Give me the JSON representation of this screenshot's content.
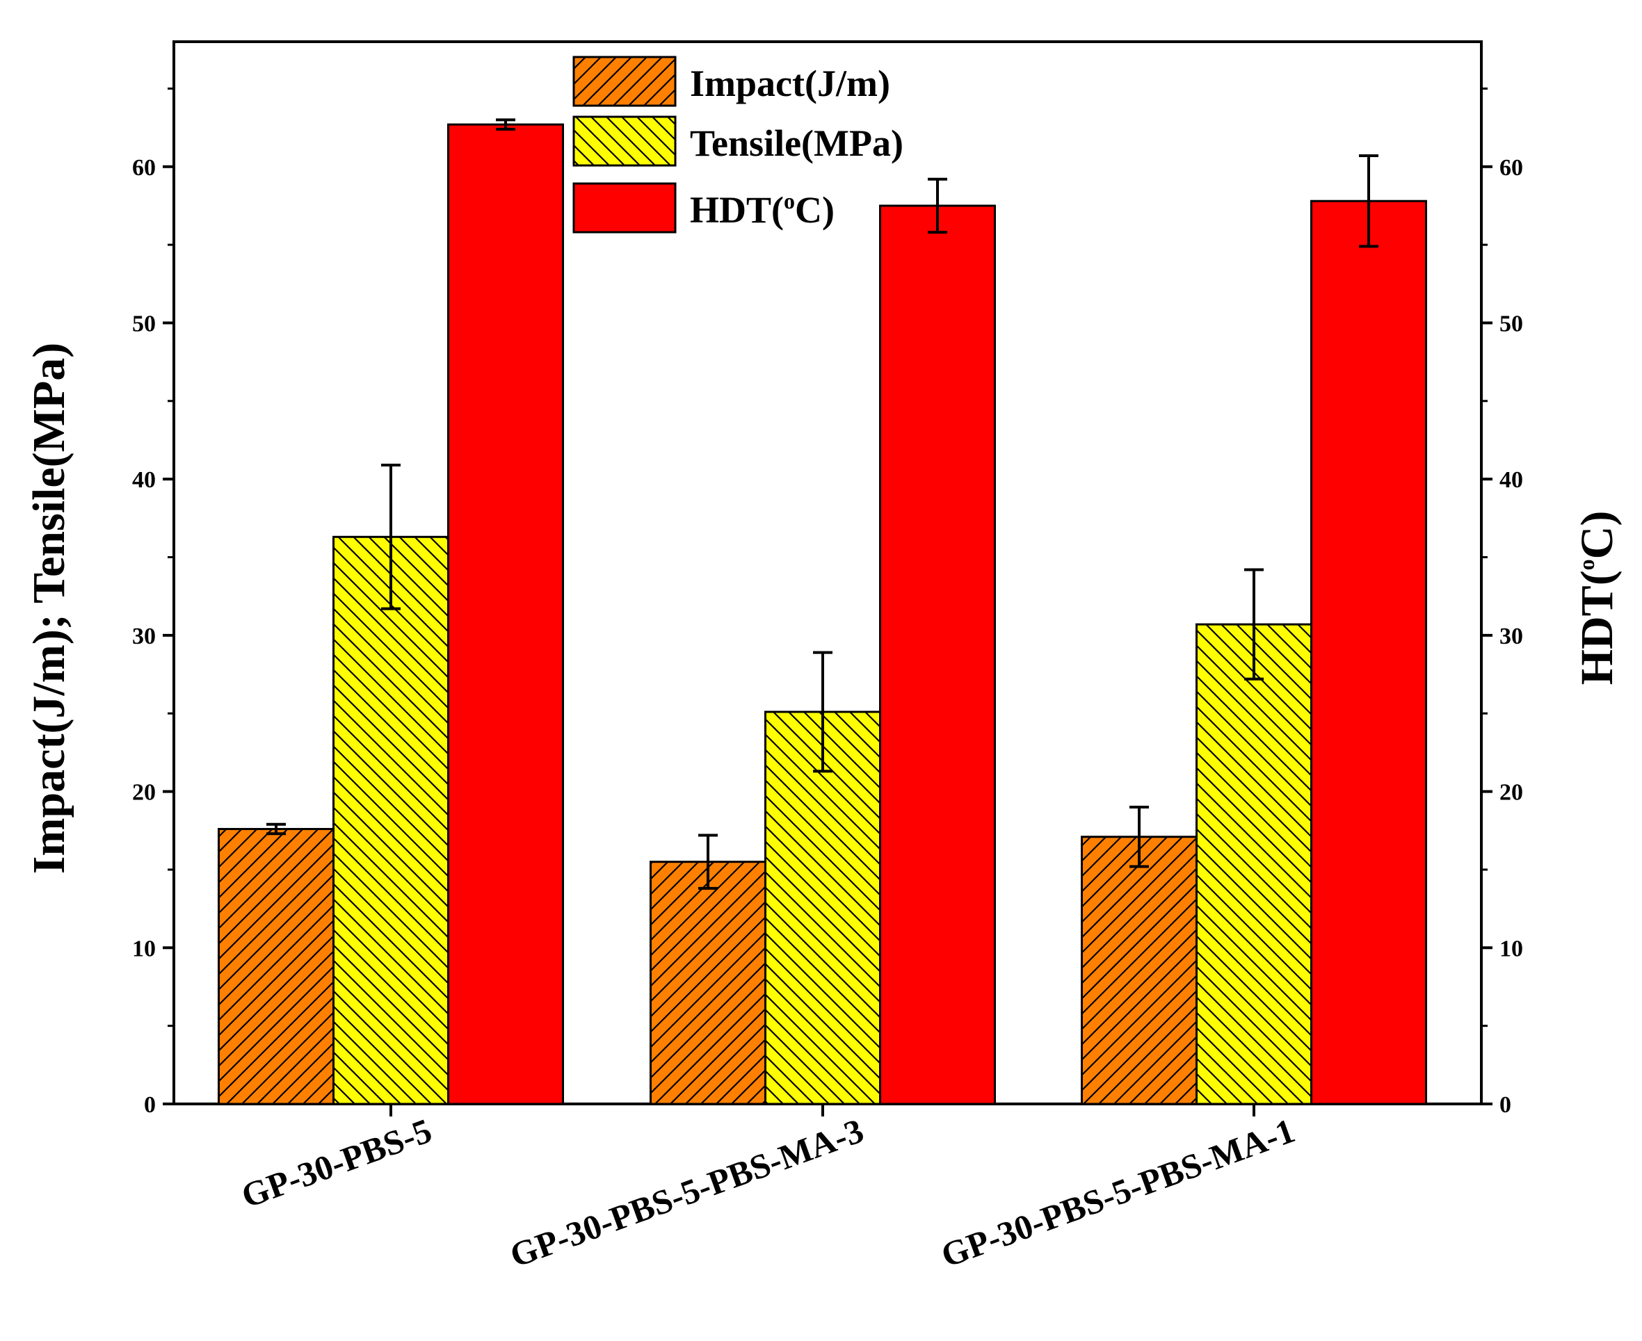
{
  "chart_data": {
    "type": "bar",
    "categories": [
      "GP-30-PBS-5",
      "GP-30-PBS-5-PBS-MA-3",
      "GP-30-PBS-5-PBS-MA-1"
    ],
    "series": [
      {
        "name": "Impact(J/m)",
        "axis": "left",
        "color": "#FF8000",
        "hatch": "forward",
        "values": [
          17.6,
          15.5,
          17.1
        ],
        "errors": [
          0.3,
          1.7,
          1.9
        ]
      },
      {
        "name": "Tensile(MPa)",
        "axis": "left",
        "color": "#FFFF00",
        "hatch": "back",
        "values": [
          36.3,
          25.1,
          30.7
        ],
        "errors": [
          4.6,
          3.8,
          3.5
        ]
      },
      {
        "name": "HDT(°C)",
        "axis": "right",
        "color": "#FF0000",
        "hatch": "none",
        "values": [
          62.7,
          57.5,
          57.8
        ],
        "errors": [
          0.3,
          1.7,
          2.9
        ]
      }
    ],
    "legend": [
      {
        "label": "Impact(J/m)"
      },
      {
        "label": "Tensile(MPa)"
      },
      {
        "label_main": "HDT(",
        "label_sup": "o",
        "label_end": "C)"
      }
    ],
    "ylabel": "Impact(J/m);   Tensile(MPa)",
    "ylabel_right_main": "HDT(",
    "ylabel_right_sup": "o",
    "ylabel_right_end": "C)",
    "ylim": [
      0,
      68
    ],
    "yticks": [
      "0",
      "10",
      "20",
      "30",
      "40",
      "50",
      "60"
    ],
    "legend_position": "top-center",
    "grid": false
  }
}
